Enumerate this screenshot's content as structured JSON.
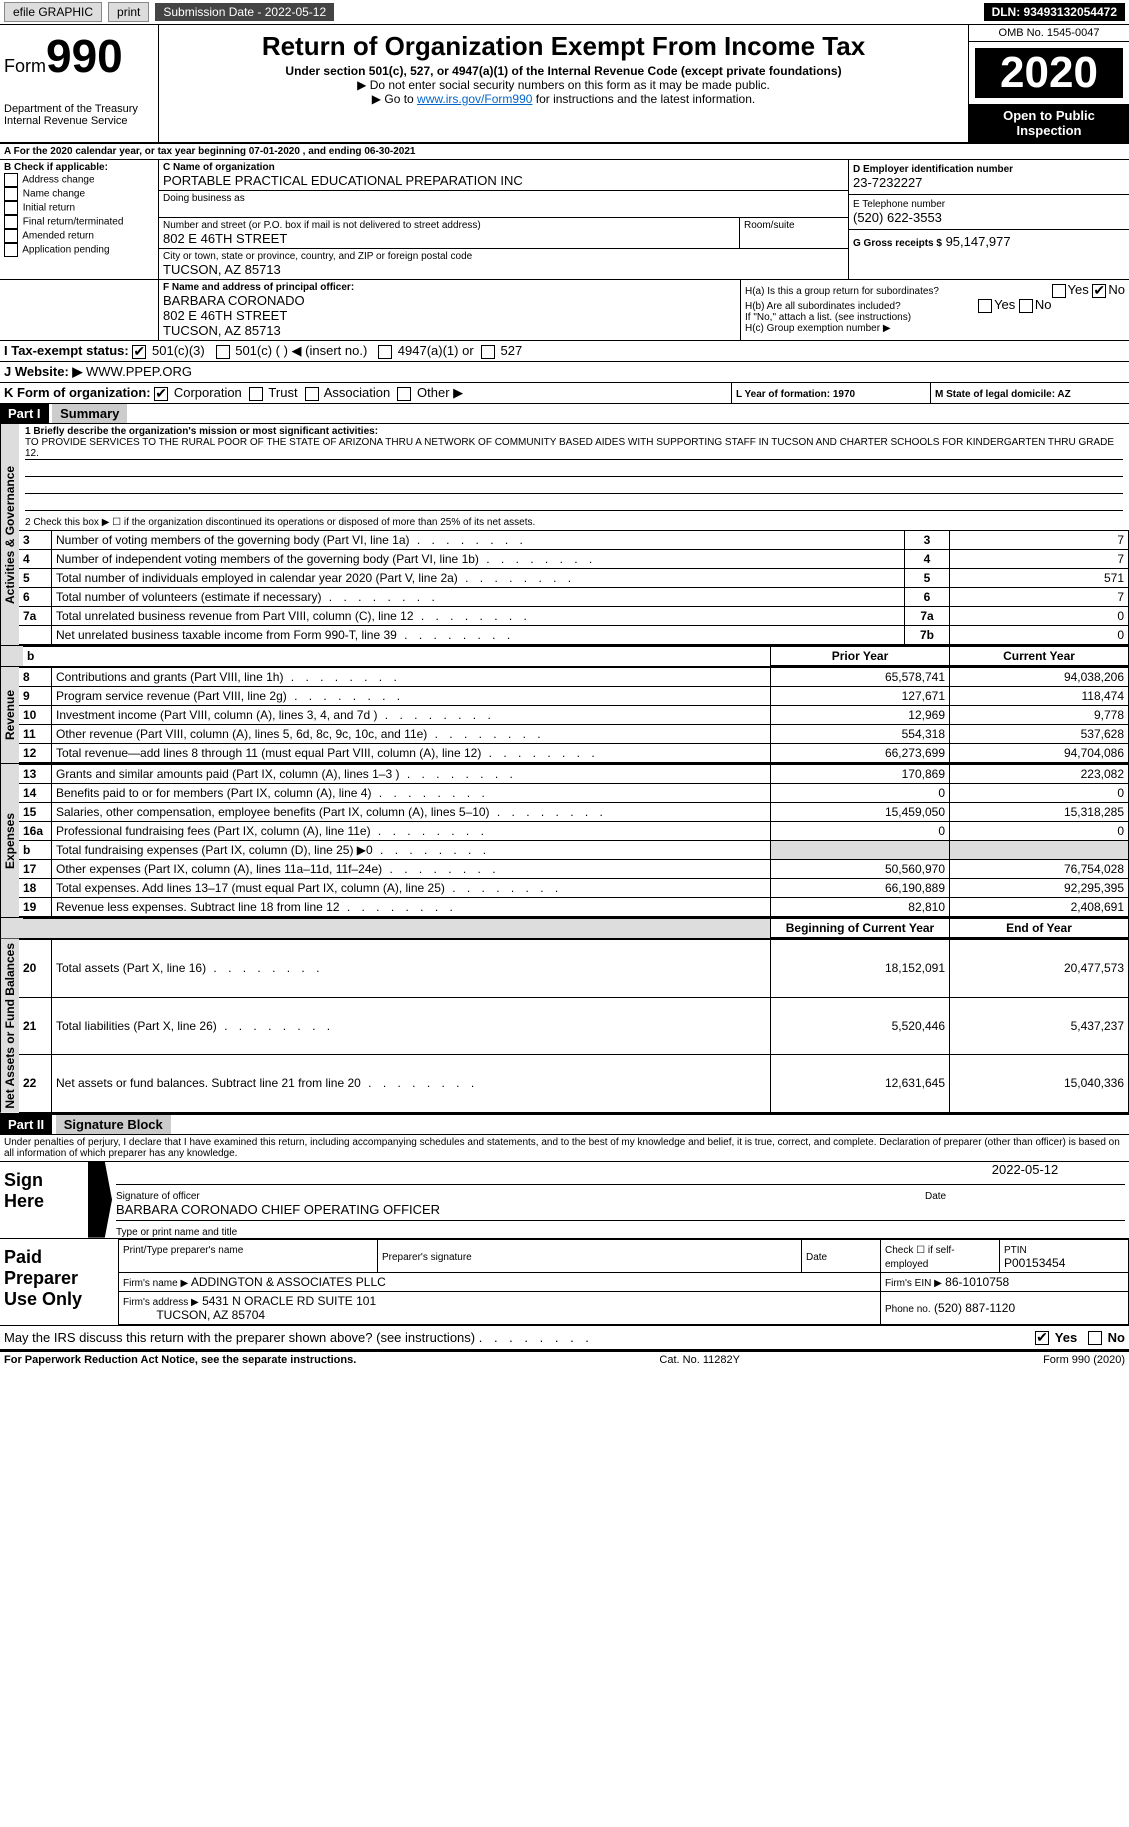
{
  "topbar": {
    "efile": "efile GRAPHIC",
    "print": "print",
    "subdate_label": "Submission Date - 2022-05-12",
    "dln": "DLN: 93493132054472"
  },
  "header": {
    "form_label": "Form",
    "form_num": "990",
    "dept": "Department of the Treasury",
    "irs": "Internal Revenue Service",
    "title": "Return of Organization Exempt From Income Tax",
    "subtitle": "Under section 501(c), 527, or 4947(a)(1) of the Internal Revenue Code (except private foundations)",
    "note1": "▶ Do not enter social security numbers on this form as it may be made public.",
    "note2_pre": "▶ Go to ",
    "note2_link": "www.irs.gov/Form990",
    "note2_post": " for instructions and the latest information.",
    "omb": "OMB No. 1545-0047",
    "year": "2020",
    "open": "Open to Public Inspection"
  },
  "periodA": "A For the 2020 calendar year, or tax year beginning 07-01-2020   , and ending 06-30-2021",
  "boxB": {
    "label": "B Check if applicable:",
    "opts": [
      "Address change",
      "Name change",
      "Initial return",
      "Final return/terminated",
      "Amended return",
      "Application pending"
    ]
  },
  "boxC": {
    "name_label": "C Name of organization",
    "name": "PORTABLE PRACTICAL EDUCATIONAL PREPARATION INC",
    "dba_label": "Doing business as",
    "addr_label": "Number and street (or P.O. box if mail is not delivered to street address)",
    "room_label": "Room/suite",
    "addr": "802 E 46TH STREET",
    "city_label": "City or town, state or province, country, and ZIP or foreign postal code",
    "city": "TUCSON, AZ  85713"
  },
  "boxD": {
    "label": "D Employer identification number",
    "val": "23-7232227"
  },
  "boxE": {
    "label": "E Telephone number",
    "val": "(520) 622-3553"
  },
  "boxG": {
    "label": "G Gross receipts $",
    "val": "95,147,977"
  },
  "boxF": {
    "label": "F Name and address of principal officer:",
    "name": "BARBARA CORONADO",
    "addr1": "802 E 46TH STREET",
    "addr2": "TUCSON, AZ  85713"
  },
  "boxH": {
    "a": "H(a)  Is this a group return for subordinates?",
    "a_yes": "Yes",
    "a_no": "No",
    "b": "H(b)  Are all subordinates included?",
    "b_yes": "Yes",
    "b_no": "No",
    "b_note": "If \"No,\" attach a list. (see instructions)",
    "c": "H(c)  Group exemption number ▶"
  },
  "boxI": {
    "label": "I   Tax-exempt status:",
    "o1": "501(c)(3)",
    "o2": "501(c) (  ) ◀ (insert no.)",
    "o3": "4947(a)(1) or",
    "o4": "527"
  },
  "boxJ": {
    "label": "J   Website: ▶",
    "val": "WWW.PPEP.ORG"
  },
  "boxK": {
    "label": "K Form of organization:",
    "o1": "Corporation",
    "o2": "Trust",
    "o3": "Association",
    "o4": "Other ▶"
  },
  "boxL": {
    "label": "L Year of formation: 1970"
  },
  "boxM": {
    "label": "M State of legal domicile: AZ"
  },
  "part1": {
    "hdr": "Part I",
    "title": "Summary",
    "l1_label": "1  Briefly describe the organization's mission or most significant activities:",
    "l1_text": "TO PROVIDE SERVICES TO THE RURAL POOR OF THE STATE OF ARIZONA THRU A NETWORK OF COMMUNITY BASED AIDES WITH SUPPORTING STAFF IN TUCSON AND CHARTER SCHOOLS FOR KINDERGARTEN THRU GRADE 12.",
    "l2": "2   Check this box ▶ ☐  if the organization discontinued its operations or disposed of more than 25% of its net assets.",
    "vlabel_gov": "Activities & Governance",
    "vlabel_rev": "Revenue",
    "vlabel_exp": "Expenses",
    "vlabel_net": "Net Assets or Fund Balances",
    "cols": {
      "prior": "Prior Year",
      "current": "Current Year",
      "begin": "Beginning of Current Year",
      "end": "End of Year"
    },
    "rows_gov": [
      {
        "n": "3",
        "t": "Number of voting members of the governing body (Part VI, line 1a)",
        "box": "3",
        "v": "7"
      },
      {
        "n": "4",
        "t": "Number of independent voting members of the governing body (Part VI, line 1b)",
        "box": "4",
        "v": "7"
      },
      {
        "n": "5",
        "t": "Total number of individuals employed in calendar year 2020 (Part V, line 2a)",
        "box": "5",
        "v": "571"
      },
      {
        "n": "6",
        "t": "Total number of volunteers (estimate if necessary)",
        "box": "6",
        "v": "7"
      },
      {
        "n": "7a",
        "t": "Total unrelated business revenue from Part VIII, column (C), line 12",
        "box": "7a",
        "v": "0"
      },
      {
        "n": "",
        "t": "Net unrelated business taxable income from Form 990-T, line 39",
        "box": "7b",
        "v": "0"
      }
    ],
    "rows_rev": [
      {
        "n": "8",
        "t": "Contributions and grants (Part VIII, line 1h)",
        "p": "65,578,741",
        "c": "94,038,206"
      },
      {
        "n": "9",
        "t": "Program service revenue (Part VIII, line 2g)",
        "p": "127,671",
        "c": "118,474"
      },
      {
        "n": "10",
        "t": "Investment income (Part VIII, column (A), lines 3, 4, and 7d )",
        "p": "12,969",
        "c": "9,778"
      },
      {
        "n": "11",
        "t": "Other revenue (Part VIII, column (A), lines 5, 6d, 8c, 9c, 10c, and 11e)",
        "p": "554,318",
        "c": "537,628"
      },
      {
        "n": "12",
        "t": "Total revenue—add lines 8 through 11 (must equal Part VIII, column (A), line 12)",
        "p": "66,273,699",
        "c": "94,704,086"
      }
    ],
    "rows_exp": [
      {
        "n": "13",
        "t": "Grants and similar amounts paid (Part IX, column (A), lines 1–3 )",
        "p": "170,869",
        "c": "223,082"
      },
      {
        "n": "14",
        "t": "Benefits paid to or for members (Part IX, column (A), line 4)",
        "p": "0",
        "c": "0"
      },
      {
        "n": "15",
        "t": "Salaries, other compensation, employee benefits (Part IX, column (A), lines 5–10)",
        "p": "15,459,050",
        "c": "15,318,285"
      },
      {
        "n": "16a",
        "t": "Professional fundraising fees (Part IX, column (A), line 11e)",
        "p": "0",
        "c": "0"
      },
      {
        "n": "b",
        "t": "Total fundraising expenses (Part IX, column (D), line 25) ▶0",
        "p": "",
        "c": "",
        "shade": true
      },
      {
        "n": "17",
        "t": "Other expenses (Part IX, column (A), lines 11a–11d, 11f–24e)",
        "p": "50,560,970",
        "c": "76,754,028"
      },
      {
        "n": "18",
        "t": "Total expenses. Add lines 13–17 (must equal Part IX, column (A), line 25)",
        "p": "66,190,889",
        "c": "92,295,395"
      },
      {
        "n": "19",
        "t": "Revenue less expenses. Subtract line 18 from line 12",
        "p": "82,810",
        "c": "2,408,691"
      }
    ],
    "rows_net": [
      {
        "n": "20",
        "t": "Total assets (Part X, line 16)",
        "p": "18,152,091",
        "c": "20,477,573"
      },
      {
        "n": "21",
        "t": "Total liabilities (Part X, line 26)",
        "p": "5,520,446",
        "c": "5,437,237"
      },
      {
        "n": "22",
        "t": "Net assets or fund balances. Subtract line 21 from line 20",
        "p": "12,631,645",
        "c": "15,040,336"
      }
    ]
  },
  "part2": {
    "hdr": "Part II",
    "title": "Signature Block",
    "decl": "Under penalties of perjury, I declare that I have examined this return, including accompanying schedules and statements, and to the best of my knowledge and belief, it is true, correct, and complete. Declaration of preparer (other than officer) is based on all information of which preparer has any knowledge.",
    "sign_here": "Sign Here",
    "sig_officer": "Signature of officer",
    "sig_date": "2022-05-12",
    "date_label": "Date",
    "officer_name": "BARBARA CORONADO CHIEF OPERATING OFFICER",
    "type_label": "Type or print name and title",
    "paid": "Paid Preparer Use Only",
    "prep_name_label": "Print/Type preparer's name",
    "prep_sig_label": "Preparer's signature",
    "prep_date_label": "Date",
    "prep_self": "Check ☐ if self-employed",
    "ptin_label": "PTIN",
    "ptin": "P00153454",
    "firm_name_label": "Firm's name    ▶",
    "firm_name": "ADDINGTON & ASSOCIATES PLLC",
    "firm_ein_label": "Firm's EIN ▶",
    "firm_ein": "86-1010758",
    "firm_addr_label": "Firm's address ▶",
    "firm_addr": "5431 N ORACLE RD SUITE 101",
    "firm_city": "TUCSON, AZ  85704",
    "firm_phone_label": "Phone no.",
    "firm_phone": "(520) 887-1120",
    "may_irs": "May the IRS discuss this return with the preparer shown above? (see instructions)",
    "yes": "Yes",
    "no": "No"
  },
  "footer": {
    "l": "For Paperwork Reduction Act Notice, see the separate instructions.",
    "m": "Cat. No. 11282Y",
    "r": "Form 990 (2020)"
  }
}
